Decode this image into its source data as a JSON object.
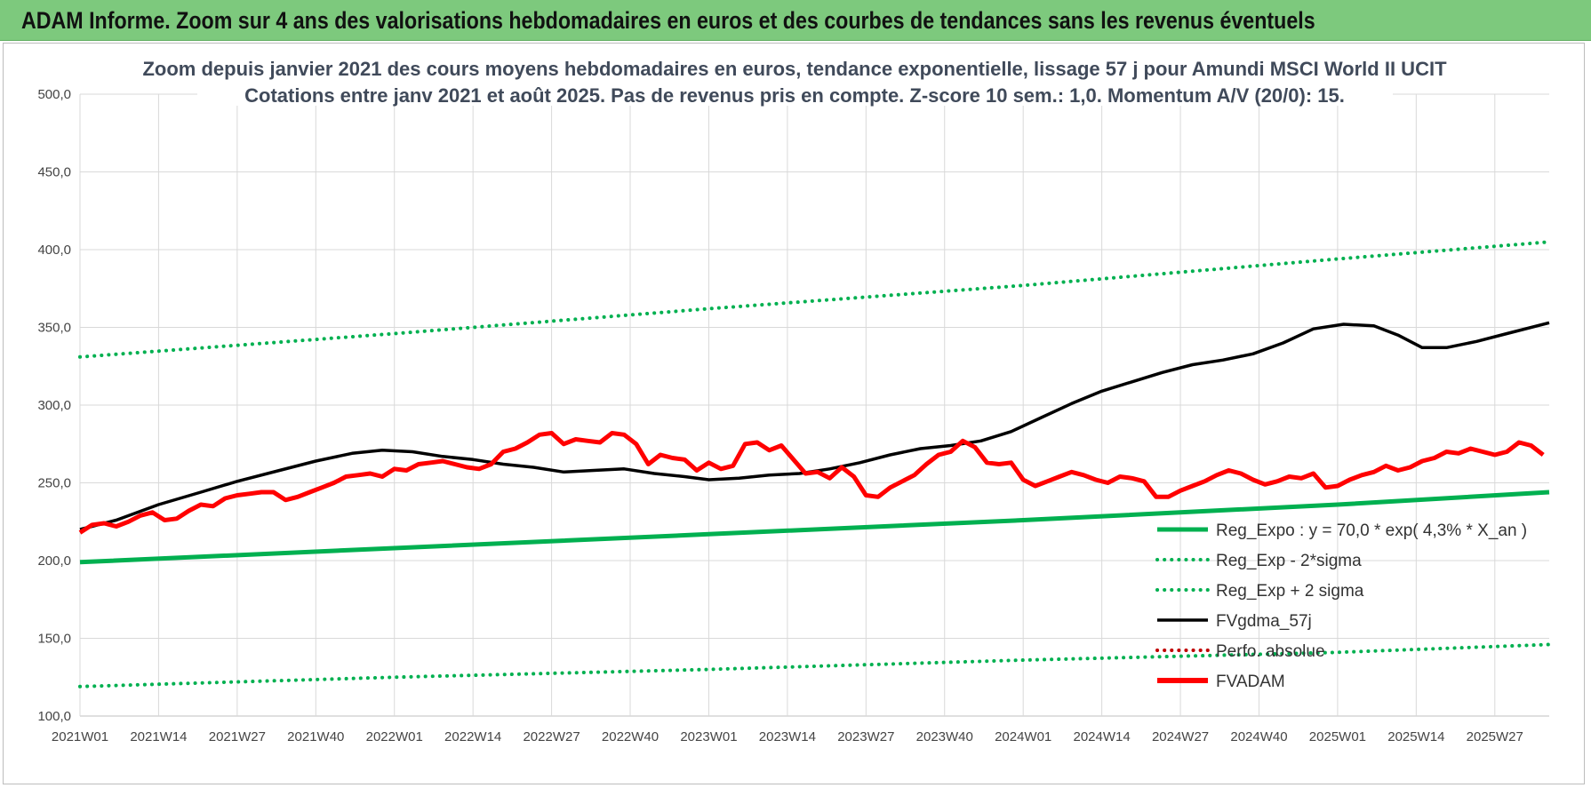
{
  "banner": {
    "title": "ADAM Informe. Zoom sur 4 ans des valorisations hebdomadaires en euros et des courbes de tendances sans les revenus éventuels"
  },
  "colors": {
    "banner_bg": "#7dc97d",
    "trend": "#00b050",
    "ma": "#000000",
    "price": "#ff0000",
    "perfo": "#c00000"
  },
  "chart_data": {
    "type": "line",
    "title_line1": "Zoom depuis janvier 2021 des cours moyens hebdomadaires en euros, tendance exponentielle, lissage 57 j pour Amundi MSCI World II UCIT",
    "title_line2": "Cotations entre janv 2021 et août 2025.  Pas de revenus pris en compte. Z-score 10 sem.: 1,0. Momentum A/V (20/0): 15.",
    "ylim": [
      100,
      500
    ],
    "y_ticks": [
      "100,0",
      "150,0",
      "200,0",
      "250,0",
      "300,0",
      "350,0",
      "400,0",
      "450,0",
      "500,0"
    ],
    "x_ticks": [
      {
        "label": "2021W01",
        "week": 0
      },
      {
        "label": "2021W14",
        "week": 13
      },
      {
        "label": "2021W27",
        "week": 26
      },
      {
        "label": "2021W40",
        "week": 39
      },
      {
        "label": "2022W01",
        "week": 52
      },
      {
        "label": "2022W14",
        "week": 65
      },
      {
        "label": "2022W27",
        "week": 78
      },
      {
        "label": "2022W40",
        "week": 91
      },
      {
        "label": "2023W01",
        "week": 104
      },
      {
        "label": "2023W14",
        "week": 117
      },
      {
        "label": "2023W27",
        "week": 130
      },
      {
        "label": "2023W40",
        "week": 143
      },
      {
        "label": "2024W01",
        "week": 156
      },
      {
        "label": "2024W14",
        "week": 169
      },
      {
        "label": "2024W27",
        "week": 182
      },
      {
        "label": "2024W40",
        "week": 195
      },
      {
        "label": "2025W01",
        "week": 208
      },
      {
        "label": "2025W14",
        "week": 221
      },
      {
        "label": "2025W27",
        "week": 234
      }
    ],
    "x_max_week": 243,
    "grid": true,
    "legend_position": "bottom-right",
    "series": [
      {
        "name": "Reg_Expo : y = 70,0 * exp( 4,3% *  X_an )",
        "style": "solid-thick",
        "color": "#00b050",
        "points": [
          [
            0,
            199
          ],
          [
            52,
            208
          ],
          [
            104,
            217
          ],
          [
            156,
            226
          ],
          [
            208,
            236
          ],
          [
            243,
            244
          ]
        ]
      },
      {
        "name": "Reg_Exp - 2*sigma",
        "style": "dotted",
        "color": "#00b050",
        "points": [
          [
            0,
            119
          ],
          [
            52,
            125
          ],
          [
            104,
            130
          ],
          [
            156,
            136
          ],
          [
            208,
            141
          ],
          [
            243,
            146
          ]
        ]
      },
      {
        "name": "Reg_Exp + 2 sigma",
        "style": "dotted",
        "color": "#00b050",
        "points": [
          [
            0,
            331
          ],
          [
            52,
            346
          ],
          [
            104,
            362
          ],
          [
            156,
            377
          ],
          [
            208,
            394
          ],
          [
            243,
            405
          ]
        ]
      },
      {
        "name": "FVgdma_57j",
        "style": "solid",
        "color": "#000000",
        "points": [
          [
            0,
            220
          ],
          [
            6,
            226
          ],
          [
            13,
            236
          ],
          [
            20,
            244
          ],
          [
            26,
            251
          ],
          [
            33,
            258
          ],
          [
            39,
            264
          ],
          [
            45,
            269
          ],
          [
            50,
            271
          ],
          [
            55,
            270
          ],
          [
            60,
            267
          ],
          [
            65,
            265
          ],
          [
            70,
            262
          ],
          [
            75,
            260
          ],
          [
            80,
            257
          ],
          [
            85,
            258
          ],
          [
            90,
            259
          ],
          [
            95,
            256
          ],
          [
            100,
            254
          ],
          [
            104,
            252
          ],
          [
            109,
            253
          ],
          [
            114,
            255
          ],
          [
            119,
            256
          ],
          [
            124,
            259
          ],
          [
            129,
            263
          ],
          [
            134,
            268
          ],
          [
            139,
            272
          ],
          [
            144,
            274
          ],
          [
            149,
            277
          ],
          [
            154,
            283
          ],
          [
            159,
            292
          ],
          [
            164,
            301
          ],
          [
            169,
            309
          ],
          [
            174,
            315
          ],
          [
            179,
            321
          ],
          [
            184,
            326
          ],
          [
            189,
            329
          ],
          [
            194,
            333
          ],
          [
            199,
            340
          ],
          [
            204,
            349
          ],
          [
            209,
            352
          ],
          [
            214,
            351
          ],
          [
            218,
            345
          ],
          [
            222,
            337
          ],
          [
            226,
            337
          ],
          [
            231,
            341
          ],
          [
            236,
            346
          ],
          [
            243,
            353
          ]
        ]
      },
      {
        "name": "Perfo. absolue",
        "style": "dotted",
        "color": "#c00000",
        "points": []
      },
      {
        "name": "FVADAM",
        "style": "solid-thick",
        "color": "#ff0000",
        "points": [
          [
            0,
            218
          ],
          [
            2,
            223
          ],
          [
            4,
            224
          ],
          [
            6,
            222
          ],
          [
            8,
            225
          ],
          [
            10,
            229
          ],
          [
            12,
            231
          ],
          [
            14,
            226
          ],
          [
            16,
            227
          ],
          [
            18,
            232
          ],
          [
            20,
            236
          ],
          [
            22,
            235
          ],
          [
            24,
            240
          ],
          [
            26,
            242
          ],
          [
            28,
            243
          ],
          [
            30,
            244
          ],
          [
            32,
            244
          ],
          [
            34,
            239
          ],
          [
            36,
            241
          ],
          [
            38,
            244
          ],
          [
            40,
            247
          ],
          [
            42,
            250
          ],
          [
            44,
            254
          ],
          [
            46,
            255
          ],
          [
            48,
            256
          ],
          [
            50,
            254
          ],
          [
            52,
            259
          ],
          [
            54,
            258
          ],
          [
            56,
            262
          ],
          [
            58,
            263
          ],
          [
            60,
            264
          ],
          [
            62,
            262
          ],
          [
            64,
            260
          ],
          [
            66,
            259
          ],
          [
            68,
            262
          ],
          [
            70,
            270
          ],
          [
            72,
            272
          ],
          [
            74,
            276
          ],
          [
            76,
            281
          ],
          [
            78,
            282
          ],
          [
            80,
            275
          ],
          [
            82,
            278
          ],
          [
            84,
            277
          ],
          [
            86,
            276
          ],
          [
            88,
            282
          ],
          [
            90,
            281
          ],
          [
            92,
            275
          ],
          [
            94,
            262
          ],
          [
            96,
            268
          ],
          [
            98,
            266
          ],
          [
            100,
            265
          ],
          [
            102,
            258
          ],
          [
            104,
            263
          ],
          [
            106,
            259
          ],
          [
            108,
            261
          ],
          [
            110,
            275
          ],
          [
            112,
            276
          ],
          [
            114,
            271
          ],
          [
            116,
            274
          ],
          [
            118,
            265
          ],
          [
            120,
            256
          ],
          [
            122,
            257
          ],
          [
            124,
            253
          ],
          [
            126,
            260
          ],
          [
            128,
            254
          ],
          [
            130,
            242
          ],
          [
            132,
            241
          ],
          [
            134,
            247
          ],
          [
            136,
            251
          ],
          [
            138,
            255
          ],
          [
            140,
            262
          ],
          [
            142,
            268
          ],
          [
            144,
            270
          ],
          [
            146,
            277
          ],
          [
            148,
            273
          ],
          [
            150,
            263
          ],
          [
            152,
            262
          ],
          [
            154,
            263
          ],
          [
            156,
            252
          ],
          [
            158,
            248
          ],
          [
            160,
            251
          ],
          [
            162,
            254
          ],
          [
            164,
            257
          ],
          [
            166,
            255
          ],
          [
            168,
            252
          ],
          [
            170,
            250
          ],
          [
            172,
            254
          ],
          [
            174,
            253
          ],
          [
            176,
            251
          ],
          [
            178,
            241
          ],
          [
            180,
            241
          ],
          [
            182,
            245
          ],
          [
            184,
            248
          ],
          [
            186,
            251
          ],
          [
            188,
            255
          ],
          [
            190,
            258
          ],
          [
            192,
            256
          ],
          [
            194,
            252
          ],
          [
            196,
            249
          ],
          [
            198,
            251
          ],
          [
            200,
            254
          ],
          [
            202,
            253
          ],
          [
            204,
            256
          ],
          [
            206,
            247
          ],
          [
            208,
            248
          ],
          [
            210,
            252
          ],
          [
            212,
            255
          ],
          [
            214,
            257
          ],
          [
            216,
            261
          ],
          [
            218,
            258
          ],
          [
            220,
            260
          ],
          [
            222,
            264
          ],
          [
            224,
            266
          ],
          [
            226,
            270
          ],
          [
            228,
            269
          ],
          [
            230,
            272
          ],
          [
            232,
            270
          ],
          [
            234,
            268
          ],
          [
            236,
            270
          ],
          [
            238,
            276
          ],
          [
            240,
            274
          ],
          [
            242,
            268
          ]
        ]
      }
    ]
  }
}
